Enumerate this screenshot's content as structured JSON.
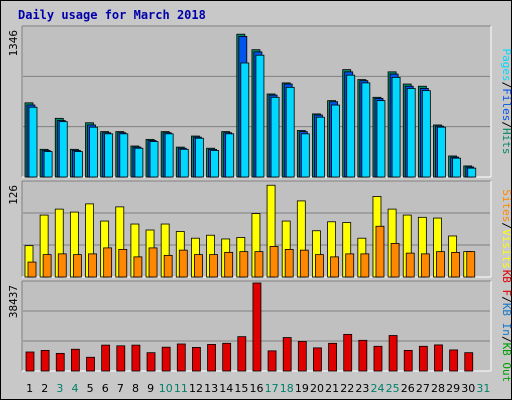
{
  "title": "Daily usage for March 2018",
  "colors": {
    "pages": "#00d8ff",
    "files": "#0055ee",
    "hits": "#008a6a",
    "visits": "#ffff00",
    "sites": "#ff8800",
    "kbin": "#1478c8",
    "kbout": "#00a000",
    "kbf": "#e00000",
    "plot_bg": "#c0c0c0",
    "page_bg": "#c8c8c8",
    "weekend_label": "#00806a"
  },
  "chart_data": [
    {
      "type": "bar",
      "panel": "hits-files-pages",
      "ymax_label": "1346",
      "ylim": [
        0,
        1346
      ],
      "legend": [
        "Pages",
        "/",
        "Files",
        "/",
        "Hits"
      ],
      "categories": [
        "1",
        "2",
        "3",
        "4",
        "5",
        "6",
        "7",
        "8",
        "9",
        "10",
        "11",
        "12",
        "13",
        "14",
        "15",
        "16",
        "17",
        "18",
        "19",
        "20",
        "21",
        "22",
        "23",
        "24",
        "25",
        "26",
        "27",
        "28",
        "29",
        "30",
        "31"
      ],
      "weekend_days": [
        "3",
        "4",
        "10",
        "11",
        "17",
        "18",
        "24",
        "25",
        "31"
      ],
      "series": [
        {
          "name": "Hits",
          "values": [
            670,
            250,
            530,
            250,
            490,
            410,
            410,
            280,
            340,
            410,
            270,
            370,
            260,
            410,
            1290,
            1150,
            750,
            850,
            420,
            570,
            690,
            970,
            880,
            720,
            950,
            840,
            820,
            470,
            190,
            100,
            0
          ]
        },
        {
          "name": "Files",
          "values": [
            650,
            240,
            510,
            240,
            470,
            400,
            400,
            270,
            330,
            400,
            260,
            360,
            250,
            400,
            1270,
            1130,
            740,
            840,
            410,
            560,
            680,
            950,
            870,
            710,
            930,
            820,
            800,
            460,
            180,
            90,
            0
          ]
        },
        {
          "name": "Pages",
          "values": [
            630,
            230,
            500,
            230,
            450,
            390,
            390,
            260,
            320,
            390,
            250,
            350,
            240,
            390,
            1030,
            1100,
            720,
            810,
            390,
            540,
            650,
            920,
            850,
            690,
            900,
            800,
            780,
            450,
            170,
            80,
            0
          ]
        }
      ]
    },
    {
      "type": "bar",
      "panel": "visits-sites",
      "ymax_label": "126",
      "ylim": [
        0,
        126
      ],
      "legend": [
        "Sites",
        "/",
        "Visits"
      ],
      "categories": [
        "1",
        "2",
        "3",
        "4",
        "5",
        "6",
        "7",
        "8",
        "9",
        "10",
        "11",
        "12",
        "13",
        "14",
        "15",
        "16",
        "17",
        "18",
        "19",
        "20",
        "21",
        "22",
        "23",
        "24",
        "25",
        "26",
        "27",
        "28",
        "29",
        "30",
        "31"
      ],
      "series": [
        {
          "name": "Visits",
          "values": [
            42,
            83,
            91,
            87,
            98,
            75,
            94,
            71,
            63,
            71,
            61,
            52,
            56,
            51,
            53,
            85,
            123,
            75,
            102,
            62,
            74,
            73,
            52,
            108,
            91,
            83,
            80,
            79,
            55,
            34,
            0
          ]
        },
        {
          "name": "Sites",
          "values": [
            20,
            30,
            31,
            30,
            31,
            39,
            37,
            27,
            39,
            29,
            36,
            30,
            30,
            33,
            34,
            34,
            41,
            37,
            36,
            30,
            27,
            31,
            31,
            68,
            45,
            32,
            31,
            34,
            33,
            34,
            0
          ]
        }
      ]
    },
    {
      "type": "bar",
      "panel": "kbytes",
      "ymax_label": "38437",
      "ylim": [
        0,
        38437
      ],
      "legend": [
        "KB F",
        "/",
        "KB In",
        "/",
        "KB Out"
      ],
      "categories": [
        "1",
        "2",
        "3",
        "4",
        "5",
        "6",
        "7",
        "8",
        "9",
        "10",
        "11",
        "12",
        "13",
        "14",
        "15",
        "16",
        "17",
        "18",
        "19",
        "20",
        "21",
        "22",
        "23",
        "24",
        "25",
        "26",
        "27",
        "28",
        "29",
        "30",
        "31"
      ],
      "series": [
        {
          "name": "KB F",
          "values": [
            8300,
            9000,
            7700,
            9500,
            6000,
            11300,
            11000,
            11300,
            8000,
            10400,
            11800,
            10300,
            11600,
            12100,
            15000,
            38437,
            8800,
            14600,
            12900,
            10100,
            12100,
            16000,
            13400,
            10800,
            15500,
            9000,
            10800,
            11400,
            9200,
            8000,
            0
          ]
        }
      ]
    }
  ]
}
